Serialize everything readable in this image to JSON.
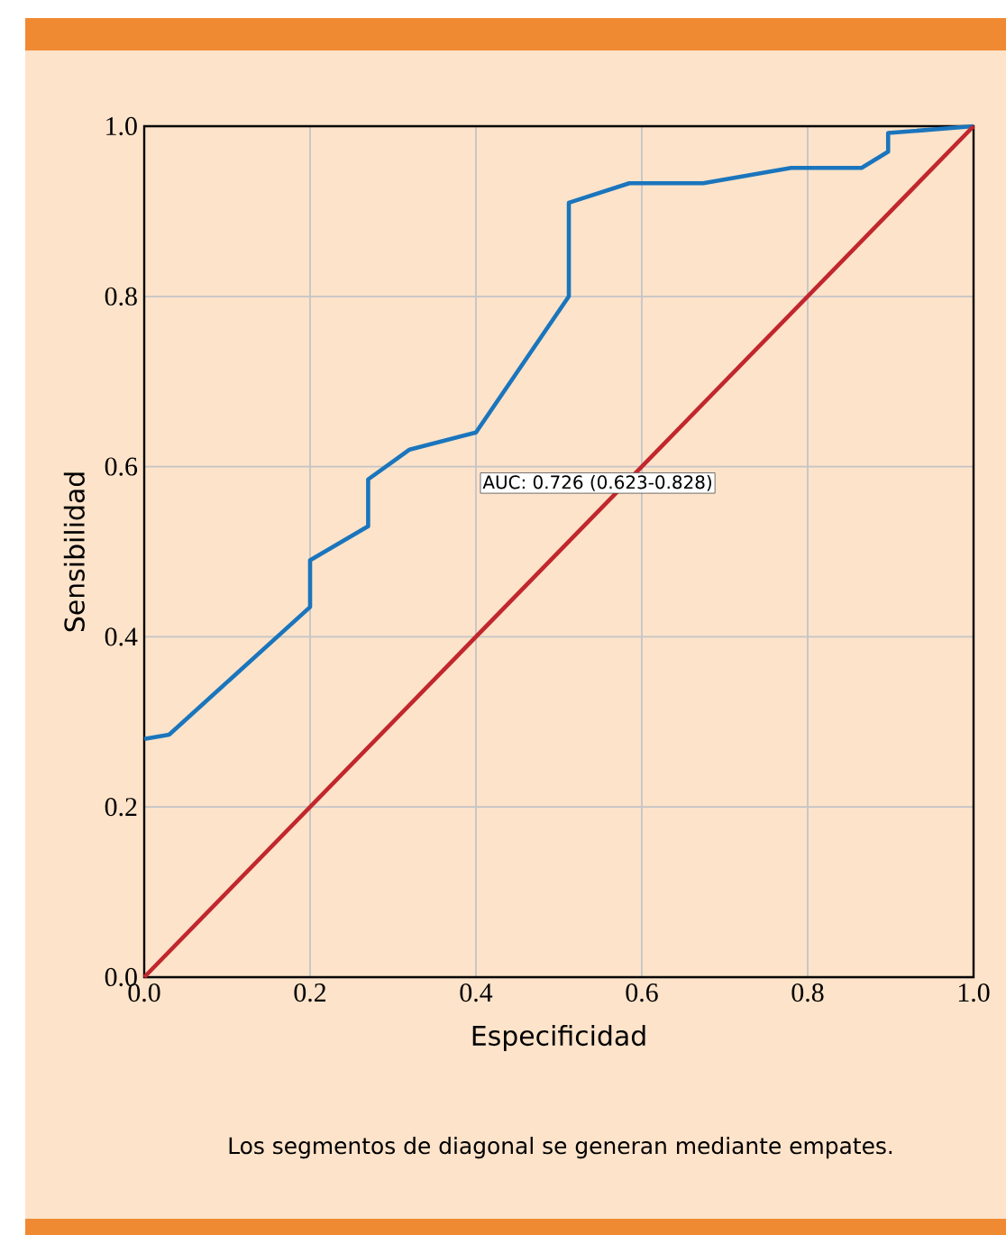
{
  "chart_data": {
    "type": "line",
    "xlabel": "Especificidad",
    "ylabel": "Sensibilidad",
    "series": [
      {
        "color": "#1a75bd",
        "x": [
          0,
          0.03,
          0.2,
          0.2,
          0.27,
          0.27,
          0.32,
          0.4,
          0.512,
          0.512,
          0.585,
          0.674,
          0.78,
          0.865,
          0.897,
          0.897,
          1.0
        ],
        "values": [
          0.28,
          0.285,
          0.435,
          0.49,
          0.53,
          0.585,
          0.62,
          0.64,
          0.8,
          0.91,
          0.933,
          0.933,
          0.951,
          0.951,
          0.97,
          0.992,
          1.0
        ]
      },
      {
        "color": "#c1272d",
        "x": [
          0,
          1
        ],
        "values": [
          0,
          1
        ]
      }
    ],
    "xlim": [
      0,
      1
    ],
    "ylim": [
      0,
      1
    ],
    "xticks": [
      {
        "value": 0,
        "label": "0.0"
      },
      {
        "value": 0.2,
        "label": "0.2"
      },
      {
        "value": 0.4,
        "label": "0.4"
      },
      {
        "value": 0.6,
        "label": "0.6"
      },
      {
        "value": 0.8,
        "label": "0.8"
      },
      {
        "value": 1,
        "label": "1.0"
      }
    ],
    "yticks": [
      {
        "value": 0,
        "label": "0.0"
      },
      {
        "value": 0.2,
        "label": "0.2"
      },
      {
        "value": 0.4,
        "label": "0.4"
      },
      {
        "value": 0.6,
        "label": "0.6"
      },
      {
        "value": 0.8,
        "label": "0.8"
      },
      {
        "value": 1,
        "label": "1.0"
      }
    ],
    "grid": true,
    "line_style": "solid",
    "marker": "none",
    "annotations": [
      "AUC: 0.726 (0.623-0.828)",
      "Los segmentos de diagonal se generan mediante empates."
    ]
  }
}
